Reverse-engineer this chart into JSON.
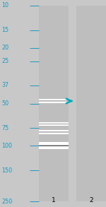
{
  "background_color": "#c8c8c8",
  "lane_bg": "#b8b8b8",
  "fig_width": 1.5,
  "fig_height": 2.93,
  "dpi": 100,
  "lane1_label": "1",
  "lane2_label": "2",
  "mw_markers": [
    250,
    150,
    100,
    75,
    50,
    37,
    25,
    20,
    15,
    10
  ],
  "mw_label_color": "#1a9abf",
  "mw_tick_color": "#1a9abf",
  "arrow_color": "#00aabb",
  "arrow_mw": 48,
  "font_size_label": 6.5,
  "font_size_mw": 5.8,
  "bands": [
    {
      "mw": 100,
      "thickness": 0.032,
      "peak_dark": 0.95,
      "sigma": 0.25
    },
    {
      "mw": 80,
      "thickness": 0.022,
      "peak_dark": 0.55,
      "sigma": 0.35
    },
    {
      "mw": 70,
      "thickness": 0.018,
      "peak_dark": 0.35,
      "sigma": 0.4
    },
    {
      "mw": 48,
      "thickness": 0.02,
      "peak_dark": 0.8,
      "sigma": 0.28
    }
  ]
}
